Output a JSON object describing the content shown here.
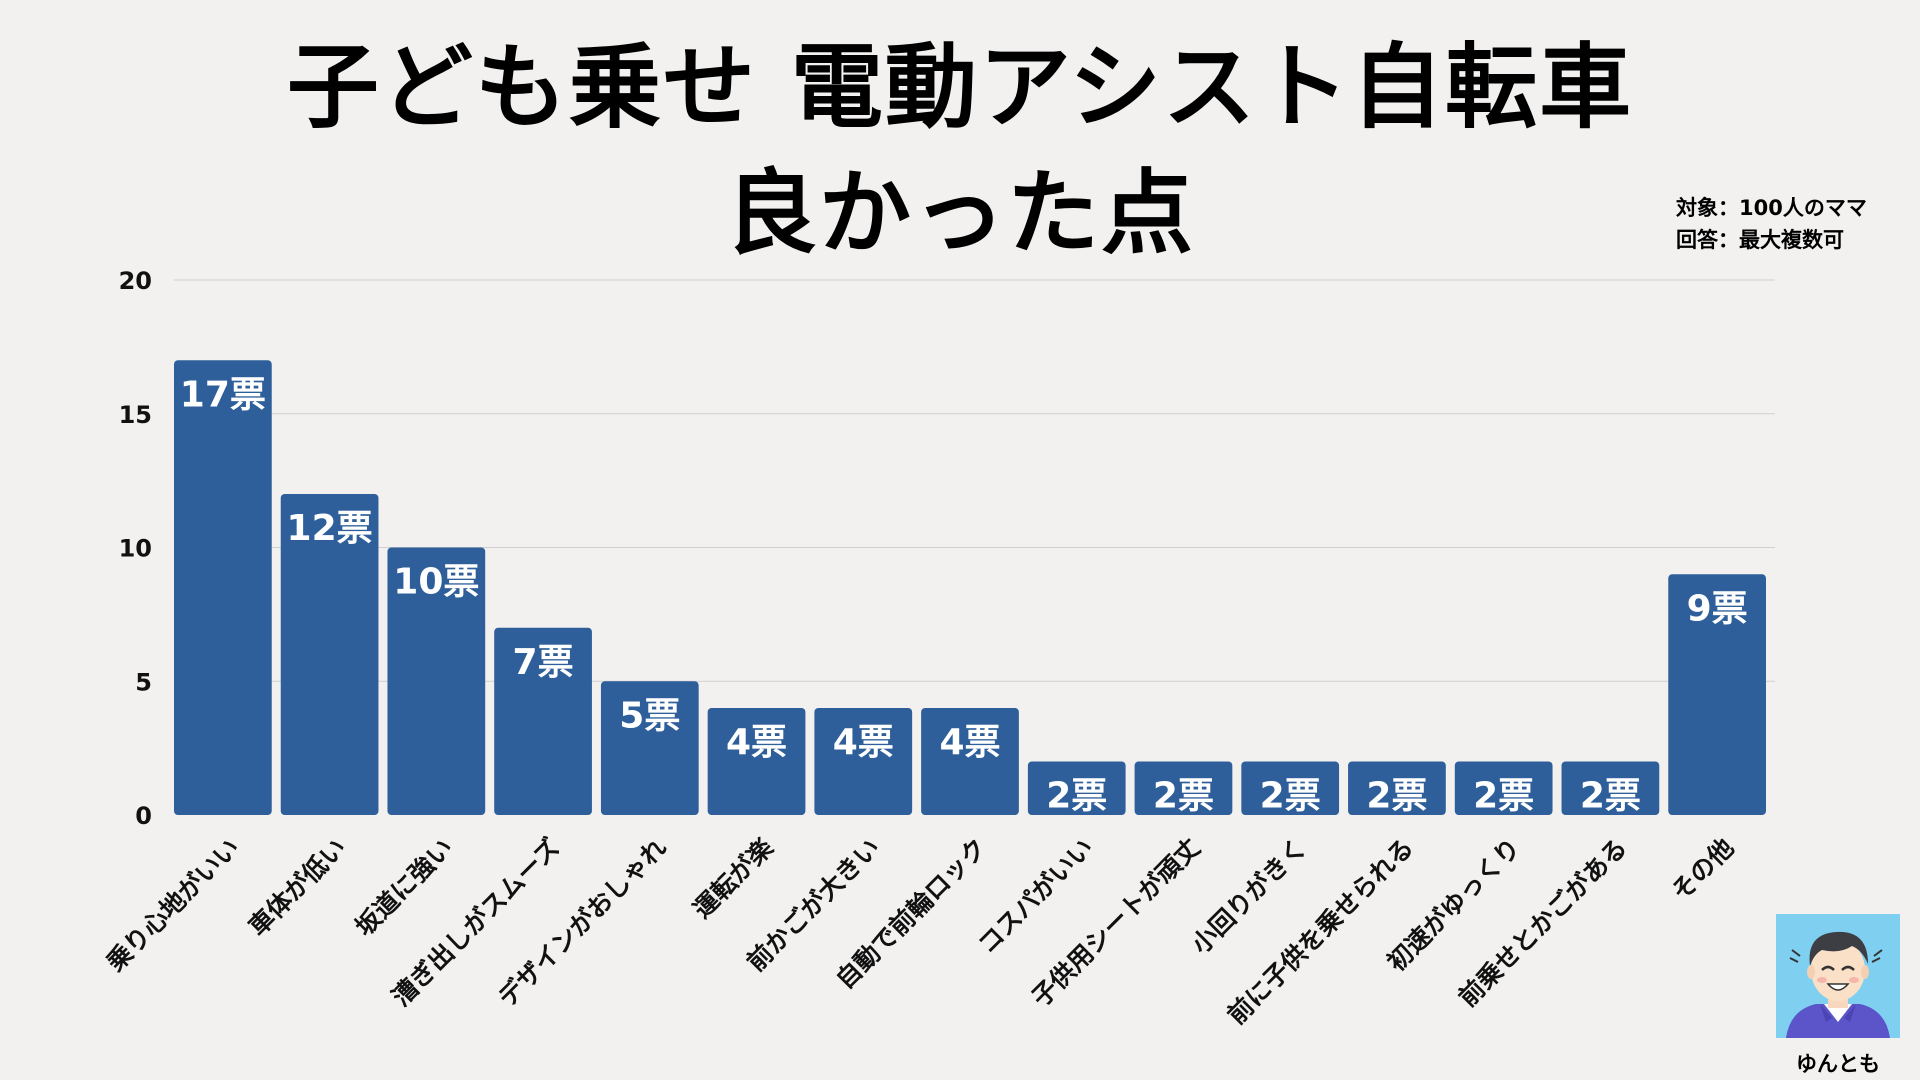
{
  "title_line1": "子ども乗せ 電動アシスト自転車",
  "title_line2": "良かった点",
  "note_line1": "対象：100人のママ",
  "note_line2": "回答：最大複数可",
  "author": "ゆんとも",
  "colors": {
    "bar": "#2e5f9a",
    "background": "#f2f1f0",
    "grid": "#cfcfcf",
    "avatar_bg": "#7fcff0"
  },
  "chart_data": {
    "type": "bar",
    "title": "子ども乗せ 電動アシスト自転車 良かった点",
    "categories": [
      "乗り心地がいい",
      "車体が低い",
      "坂道に強い",
      "漕ぎ出しがスムーズ",
      "デザインがおしゃれ",
      "運転が楽",
      "前かごが大きい",
      "自動で前輪ロック",
      "コスパがいい",
      "子供用シートが頑丈",
      "小回りがきく",
      "前に子供を乗せられる",
      "初速がゆっくり",
      "前乗せとかごがある",
      "その他"
    ],
    "values": [
      17,
      12,
      10,
      7,
      5,
      4,
      4,
      4,
      2,
      2,
      2,
      2,
      2,
      2,
      9
    ],
    "value_labels": [
      "17票",
      "12票",
      "10票",
      "7票",
      "5票",
      "4票",
      "4票",
      "4票",
      "2票",
      "2票",
      "2票",
      "2票",
      "2票",
      "2票",
      "9票"
    ],
    "yticks": [
      0,
      5,
      10,
      15,
      20
    ],
    "ylim": [
      0,
      20
    ],
    "grid": true,
    "xlabel": "",
    "ylabel": ""
  }
}
